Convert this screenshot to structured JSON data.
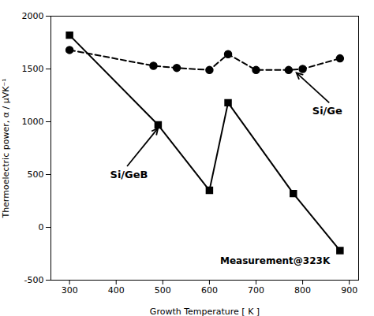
{
  "chart_data": {
    "type": "line",
    "title": "",
    "xlabel": "Growth Temperature [ K ]",
    "ylabel": "Thermoelectric power, α / μVK⁻¹",
    "xlim": [
      260,
      920
    ],
    "ylim": [
      -500,
      2000
    ],
    "xticks": [
      300,
      400,
      500,
      600,
      700,
      800,
      900
    ],
    "yticks": [
      -500,
      0,
      500,
      1000,
      1500,
      2000
    ],
    "grid": false,
    "series": [
      {
        "name": "Si/Ge",
        "color": "black",
        "line_style": "dashed",
        "marker": "circle",
        "x": [
          300,
          480,
          530,
          600,
          640,
          700,
          770,
          800,
          880
        ],
        "values": [
          1680,
          1530,
          1510,
          1490,
          1640,
          1490,
          1490,
          1500,
          1600
        ]
      },
      {
        "name": "Si/GeB",
        "color": "black",
        "line_style": "solid",
        "marker": "square",
        "x": [
          300,
          490,
          600,
          640,
          780,
          880
        ],
        "values": [
          1820,
          970,
          350,
          1180,
          320,
          -220
        ]
      }
    ],
    "annotations": [
      {
        "text": "Si/GeB",
        "x": 497,
        "y": 970
      },
      {
        "text": "Si/Ge",
        "x": 780,
        "y": 1490
      }
    ],
    "note": "Measurement@323K"
  }
}
